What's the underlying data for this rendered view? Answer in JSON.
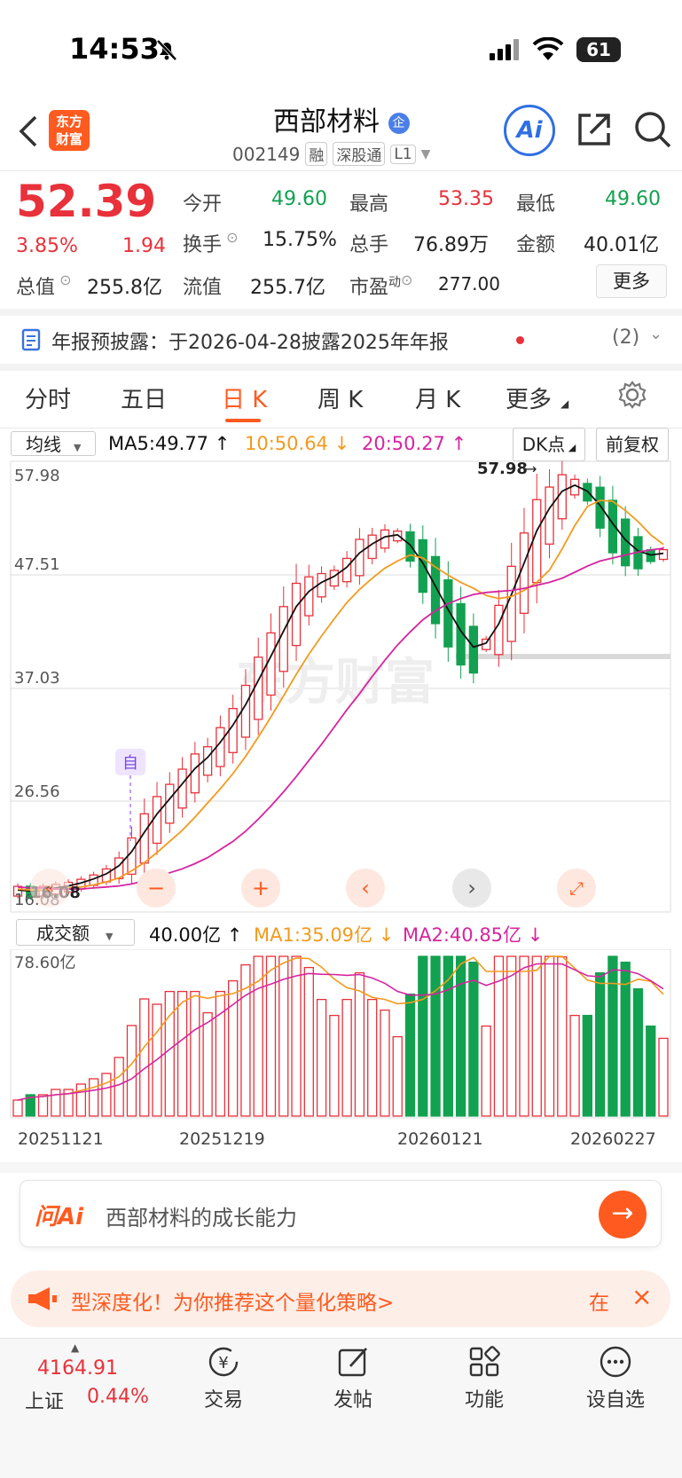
{
  "status_bar": {
    "time": "14:53",
    "battery": "61"
  },
  "header": {
    "logo_line1": "东方",
    "logo_line2": "财富",
    "title": "西部材料",
    "badge": "企",
    "code": "002149",
    "tag1": "融",
    "tag2": "深股通",
    "tag3": "L1",
    "ai_label": "Ai"
  },
  "quote": {
    "price": "52.39",
    "change_pct": "3.85%",
    "change": "1.94",
    "open_label": "今开",
    "open": "49.60",
    "high_label": "最高",
    "high": "53.35",
    "low_label": "最低",
    "low": "49.60",
    "turnover_label": "换手",
    "turnover": "15.75%",
    "volume_label": "总手",
    "volume": "76.89万",
    "amount_label": "金额",
    "amount": "40.01亿",
    "mktcap_label": "总值",
    "mktcap": "255.8亿",
    "float_label": "流值",
    "float": "255.7亿",
    "pe_label": "市盈",
    "pe_sup": "动",
    "pe": "277.00",
    "more_btn": "更多"
  },
  "notice": {
    "text": "年报预披露：于2026-04-28披露2025年年报",
    "count": "(2)"
  },
  "tabs": [
    {
      "label": "分时"
    },
    {
      "label": "五日"
    },
    {
      "label": "日 K"
    },
    {
      "label": "周 K"
    },
    {
      "label": "月 K"
    },
    {
      "label": "更多"
    }
  ],
  "kline": {
    "indicator": "均线",
    "ma5": "MA5:49.77",
    "ma10": "10:50.64",
    "ma20": "20:50.27",
    "dk_btn": "DK点",
    "adjust_btn": "前复权",
    "y_labels": [
      "57.98",
      "47.51",
      "37.03",
      "26.56",
      "16.08"
    ],
    "max_marker": "57.98",
    "min_marker": "16.08",
    "self_tag": "自",
    "watermark": "东方财富"
  },
  "volume_panel": {
    "indicator": "成交额",
    "value": "40.00亿",
    "ma1": "MA1:35.09亿",
    "ma2": "MA2:40.85亿",
    "y_max": "78.60亿",
    "dates": [
      "20251121",
      "20251219",
      "20260121",
      "20260227"
    ]
  },
  "ai_box": {
    "brand": "问Ai",
    "placeholder": "西部材料的成长能力"
  },
  "banner": {
    "text": "型深度化！为你推荐这个量化策略>",
    "tail": "在"
  },
  "bottom_nav": {
    "index_value": "4164.91",
    "index_name": "上证",
    "index_change": "0.44%",
    "items": [
      {
        "label": "交易"
      },
      {
        "label": "发帖"
      },
      {
        "label": "功能"
      },
      {
        "label": "设自选"
      }
    ]
  },
  "colors": {
    "up": "#e8313a",
    "down": "#12a150",
    "ma5": "#111111",
    "ma10": "#f39a1e",
    "ma20": "#d6249f",
    "accent": "#ff5a1f"
  },
  "chart_data": {
    "type": "candlestick",
    "series": [
      {
        "name": "MA5",
        "values": [
          16.5,
          16.4,
          16.5,
          16.7,
          16.9,
          17.2,
          17.6,
          18.1,
          18.9,
          20.3,
          22.2,
          24.0,
          25.5,
          27.0,
          28.5,
          29.6,
          31.1,
          32.8,
          34.8,
          37.2,
          39.6,
          42.1,
          44.5,
          46.0,
          46.9,
          47.5,
          48.4,
          49.8,
          50.7,
          51.4,
          51.6,
          50.6,
          48.8,
          46.5,
          44.2,
          42.1,
          40.5,
          40.9,
          42.8,
          45.7,
          48.8,
          52.0,
          54.2,
          55.9,
          56.5,
          55.9,
          54.5,
          52.7,
          51.1,
          50.0,
          49.6,
          49.77
        ]
      },
      {
        "name": "MA10",
        "values": [
          16.6,
          16.5,
          16.5,
          16.6,
          16.7,
          16.8,
          17.0,
          17.3,
          17.7,
          18.4,
          19.2,
          20.2,
          21.3,
          22.4,
          23.7,
          25.1,
          26.5,
          28.0,
          29.7,
          31.6,
          33.6,
          35.7,
          37.8,
          39.8,
          41.6,
          43.3,
          44.9,
          46.2,
          47.3,
          48.3,
          49.0,
          49.6,
          49.3,
          48.4,
          47.6,
          46.9,
          46.3,
          45.6,
          45.3,
          45.5,
          46.1,
          46.9,
          48.1,
          50.2,
          52.5,
          54.4,
          55.0,
          54.9,
          54.0,
          52.9,
          51.6,
          50.64
        ]
      },
      {
        "name": "MA20",
        "values": [
          16.8,
          16.7,
          16.7,
          16.6,
          16.6,
          16.6,
          16.7,
          16.8,
          16.9,
          17.1,
          17.4,
          17.8,
          18.2,
          18.6,
          19.1,
          19.7,
          20.5,
          21.3,
          22.3,
          23.5,
          24.8,
          26.2,
          27.7,
          29.3,
          30.9,
          32.6,
          34.3,
          35.9,
          37.6,
          39.2,
          40.7,
          42.0,
          43.2,
          44.1,
          44.8,
          45.3,
          45.7,
          45.9,
          46.0,
          46.1,
          46.3,
          46.6,
          46.9,
          47.3,
          47.9,
          48.5,
          49.0,
          49.3,
          49.6,
          49.9,
          50.1,
          50.27
        ]
      }
    ],
    "ylim": [
      16.08,
      57.98
    ],
    "xlabel": "",
    "ylabel": ""
  }
}
